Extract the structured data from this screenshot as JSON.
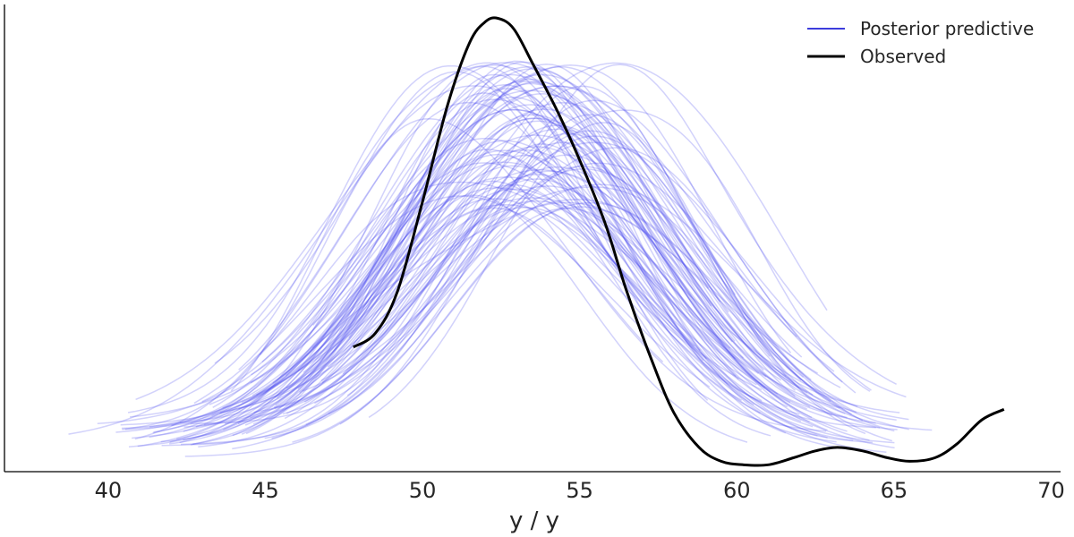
{
  "chart_data": {
    "type": "line",
    "title": "",
    "xlabel": "y / y",
    "ylabel": "",
    "xlim": [
      36.7,
      70.3
    ],
    "ylim": [
      0,
      0.135
    ],
    "xticks": [
      "40",
      "45",
      "50",
      "55",
      "60",
      "65",
      "70"
    ],
    "grid": false,
    "legend": {
      "placement": "top-right",
      "entries": [
        {
          "label": "Posterior predictive",
          "color": "#3c3cdc"
        },
        {
          "label": "Observed",
          "color": "#000000"
        }
      ]
    },
    "colors": {
      "posterior": "#4b4bf0",
      "observed": "#000000",
      "axis": "#000000"
    },
    "posterior_predictive_summary": {
      "draws_shown": 100,
      "center_range": [
        50.5,
        56.0
      ],
      "peak_density_range": [
        0.075,
        0.12
      ],
      "x_min": 38.3,
      "x_max": 68.5
    },
    "series": [
      {
        "name": "Observed",
        "x": [
          47.8,
          48.5,
          49.2,
          50.0,
          50.8,
          51.5,
          52.0,
          52.4,
          52.9,
          53.5,
          54.3,
          55.0,
          55.8,
          56.5,
          57.3,
          58.0,
          58.8,
          59.5,
          60.2,
          61.0,
          61.8,
          62.5,
          63.2,
          64.0,
          64.8,
          65.5,
          66.3,
          67.0,
          67.8,
          68.5
        ],
        "y": [
          0.036,
          0.04,
          0.052,
          0.078,
          0.106,
          0.124,
          0.13,
          0.131,
          0.128,
          0.118,
          0.104,
          0.09,
          0.072,
          0.052,
          0.032,
          0.017,
          0.007,
          0.003,
          0.002,
          0.002,
          0.004,
          0.006,
          0.007,
          0.006,
          0.004,
          0.003,
          0.004,
          0.008,
          0.015,
          0.018
        ]
      }
    ]
  }
}
